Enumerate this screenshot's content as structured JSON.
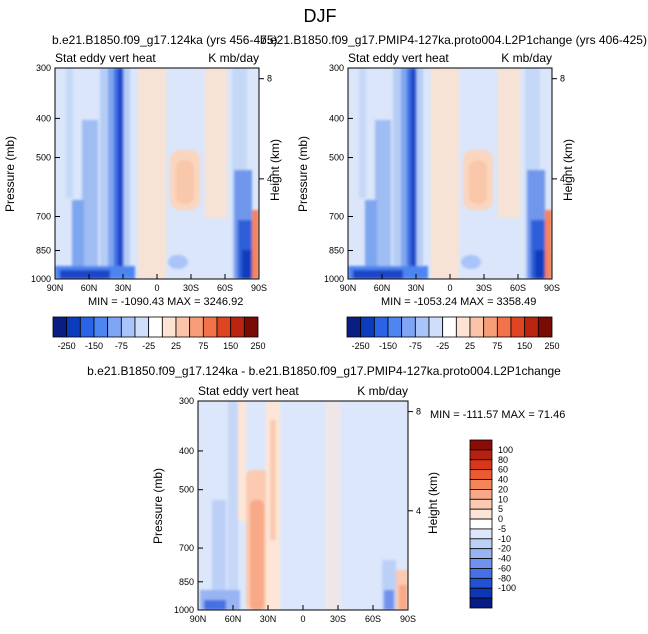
{
  "page_title": "DJF",
  "chart_data": [
    {
      "type": "heatmap",
      "title": "b.e21.B1850.f09_g17.124ka (yrs 456-475)",
      "subtitle_left": "Stat eddy vert heat",
      "subtitle_right": "K mb/day",
      "ylabel": "Pressure (mb)",
      "ylabel_right": "Height (km)",
      "x_ticks": [
        "90N",
        "60N",
        "30N",
        "0",
        "30S",
        "60S",
        "90S"
      ],
      "y_ticks": [
        "300",
        "400",
        "500",
        "700",
        "850",
        "1000"
      ],
      "y_ticks_right": [
        "8",
        "4"
      ],
      "min_max_text": "MIN = -1090.43   MAX = 3246.92",
      "min": -1090.43,
      "max": 3246.92,
      "colorbar_labels": [
        "-250",
        "-150",
        "-75",
        "-25",
        "25",
        "75",
        "150",
        "250"
      ],
      "colorbar_colors": [
        "#0a1e82",
        "#0b3cbd",
        "#2b63e6",
        "#4e85f0",
        "#7fa6f5",
        "#a9c4f8",
        "#cfdefb",
        "#ffffff",
        "#fde3d4",
        "#fbc4a8",
        "#f79e78",
        "#f27249",
        "#e04523",
        "#bb2410",
        "#7a0a04"
      ]
    },
    {
      "type": "heatmap",
      "title": "b.e21.B1850.f09_g17.PMIP4-127ka.proto004.L2P1change (yrs 406-425)",
      "subtitle_left": "Stat eddy vert heat",
      "subtitle_right": "K mb/day",
      "ylabel": "Pressure (mb)",
      "ylabel_right": "Height (km)",
      "x_ticks": [
        "90N",
        "60N",
        "30N",
        "0",
        "30S",
        "60S",
        "90S"
      ],
      "y_ticks": [
        "300",
        "400",
        "500",
        "700",
        "850",
        "1000"
      ],
      "y_ticks_right": [
        "8",
        "4"
      ],
      "min_max_text": "MIN = -1053.24   MAX = 3358.49",
      "min": -1053.24,
      "max": 3358.49,
      "colorbar_labels": [
        "-250",
        "-150",
        "-75",
        "-25",
        "25",
        "75",
        "150",
        "250"
      ],
      "colorbar_colors": [
        "#0a1e82",
        "#0b3cbd",
        "#2b63e6",
        "#4e85f0",
        "#7fa6f5",
        "#a9c4f8",
        "#cfdefb",
        "#ffffff",
        "#fde3d4",
        "#fbc4a8",
        "#f79e78",
        "#f27249",
        "#e04523",
        "#bb2410",
        "#7a0a04"
      ]
    },
    {
      "type": "heatmap",
      "title": "b.e21.B1850.f09_g17.124ka - b.e21.B1850.f09_g17.PMIP4-127ka.proto004.L2P1change",
      "subtitle_left": "Stat eddy vert heat",
      "subtitle_right": "K mb/day",
      "ylabel": "Pressure (mb)",
      "ylabel_right": "Height (km)",
      "x_ticks": [
        "90N",
        "60N",
        "30N",
        "0",
        "30S",
        "60S",
        "90S"
      ],
      "y_ticks": [
        "300",
        "400",
        "500",
        "700",
        "850",
        "1000"
      ],
      "y_ticks_right": [
        "8",
        "4"
      ],
      "min_max_text": "MIN = -111.57   MAX = 71.46",
      "min": -111.57,
      "max": 71.46,
      "colorbar_labels": [
        "100",
        "80",
        "60",
        "40",
        "20",
        "10",
        "5",
        "0",
        "-5",
        "-10",
        "-20",
        "-40",
        "-60",
        "-80",
        "-100"
      ],
      "colorbar_colors": [
        "#8a0c06",
        "#b5200f",
        "#d7361b",
        "#ec5a32",
        "#f4845a",
        "#f8a987",
        "#fbcab0",
        "#fde6d8",
        "#ffffff",
        "#dde7fb",
        "#bcd0f7",
        "#98b4f3",
        "#6f92ed",
        "#4670e4",
        "#2251d4",
        "#0d36b4",
        "#061d85"
      ]
    }
  ],
  "colors": {
    "neutral_fill": "#dbe6fa",
    "frame": "#000000"
  }
}
